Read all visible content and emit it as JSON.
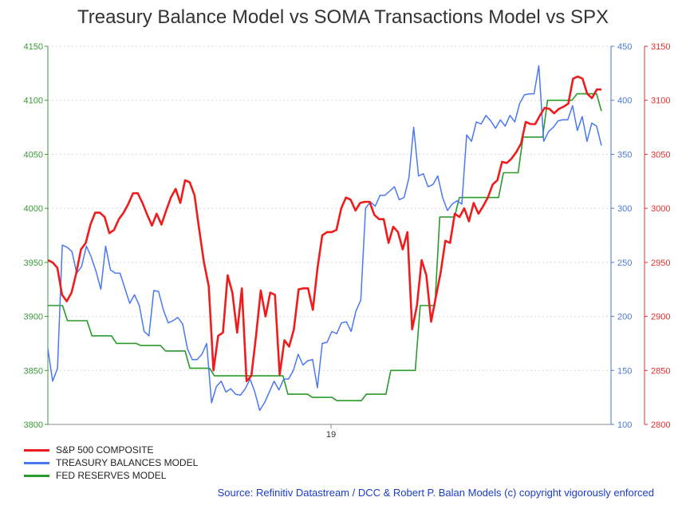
{
  "chart_data": {
    "type": "line",
    "title": "Treasury Balance Model vs SOMA Transactions Model vs SPX",
    "x_tick_label": "19",
    "axes": {
      "left": {
        "ylim": [
          3800,
          4150
        ],
        "ticks": [
          3800,
          3850,
          3900,
          3950,
          4000,
          4050,
          4100,
          4150
        ],
        "color": "#3a9a3a"
      },
      "right1": {
        "ylim": [
          100,
          450
        ],
        "ticks": [
          100,
          150,
          200,
          250,
          300,
          350,
          400,
          450
        ],
        "color": "#4a78d8"
      },
      "right2": {
        "ylim": [
          2800,
          3150
        ],
        "ticks": [
          2800,
          2850,
          2900,
          2950,
          3000,
          3050,
          3100,
          3150
        ],
        "color": "#e03030"
      }
    },
    "grid": true,
    "legend_position": "bottom-left",
    "series": [
      {
        "name": "S&P 500 COMPOSITE",
        "axis": "right2",
        "color": "#ee1c1c",
        "values": [
          2952,
          2950,
          2945,
          2920,
          2914,
          2922,
          2940,
          2962,
          2968,
          2985,
          2996,
          2996,
          2992,
          2977,
          2980,
          2990,
          2996,
          3004,
          3014,
          3014,
          3005,
          2994,
          2984,
          2995,
          2985,
          2998,
          3010,
          3018,
          3005,
          3026,
          3024,
          3012,
          2980,
          2950,
          2928,
          2850,
          2882,
          2885,
          2938,
          2922,
          2885,
          2926,
          2840,
          2845,
          2882,
          2924,
          2900,
          2922,
          2920,
          2846,
          2878,
          2872,
          2888,
          2925,
          2926,
          2926,
          2906,
          2945,
          2975,
          2978,
          2978,
          2980,
          3000,
          3010,
          3008,
          2998,
          3005,
          3006,
          3006,
          2994,
          2990,
          2990,
          2968,
          2983,
          2978,
          2962,
          2978,
          2888,
          2910,
          2952,
          2938,
          2895,
          2918,
          2940,
          2970,
          2968,
          2995,
          2992,
          3000,
          2988,
          3005,
          2995,
          3002,
          3010,
          3022,
          3026,
          3043,
          3042,
          3046,
          3052,
          3060,
          3080,
          3078,
          3078,
          3086,
          3093,
          3092,
          3088,
          3092,
          3094,
          3097,
          3120,
          3122,
          3120,
          3106,
          3102,
          3110,
          3110
        ]
      },
      {
        "name": "TREASURY BALANCES MODEL",
        "axis": "right1",
        "color": "#4a78f0",
        "values": [
          170,
          140,
          152,
          266,
          264,
          260,
          240,
          246,
          265,
          255,
          242,
          225,
          265,
          243,
          240,
          240,
          226,
          212,
          220,
          210,
          186,
          182,
          224,
          223,
          206,
          194,
          196,
          199,
          193,
          170,
          160,
          160,
          165,
          175,
          120,
          135,
          140,
          130,
          133,
          128,
          127,
          133,
          142,
          130,
          113,
          120,
          130,
          140,
          132,
          142,
          142,
          150,
          165,
          155,
          159,
          160,
          134,
          175,
          176,
          186,
          184,
          194,
          195,
          186,
          205,
          215,
          300,
          306,
          302,
          312,
          312,
          316,
          320,
          308,
          310,
          328,
          375,
          330,
          332,
          320,
          322,
          330,
          310,
          298,
          304,
          307,
          304,
          368,
          362,
          380,
          378,
          386,
          381,
          374,
          382,
          376,
          386,
          380,
          397,
          405,
          406,
          406,
          432,
          362,
          371,
          375,
          381,
          382,
          382,
          395,
          372,
          385,
          362,
          379,
          376,
          358
        ]
      },
      {
        "name": "FED RESERVES MODEL",
        "axis": "left",
        "color": "#2a9a2a",
        "values": [
          3910,
          3910,
          3910,
          3910,
          3896,
          3896,
          3896,
          3896,
          3896,
          3882,
          3882,
          3882,
          3882,
          3882,
          3875,
          3875,
          3875,
          3875,
          3875,
          3873,
          3873,
          3873,
          3873,
          3873,
          3868,
          3868,
          3868,
          3868,
          3868,
          3852,
          3852,
          3852,
          3852,
          3852,
          3845,
          3845,
          3845,
          3845,
          3845,
          3845,
          3845,
          3845,
          3845,
          3845,
          3845,
          3845,
          3845,
          3845,
          3845,
          3828,
          3828,
          3828,
          3828,
          3828,
          3825,
          3825,
          3825,
          3825,
          3825,
          3822,
          3822,
          3822,
          3822,
          3822,
          3822,
          3828,
          3828,
          3828,
          3828,
          3828,
          3850,
          3850,
          3850,
          3850,
          3850,
          3850,
          3910,
          3910,
          3910,
          3910,
          3992,
          3992,
          3992,
          3992,
          4010,
          4010,
          4010,
          4010,
          4010,
          4010,
          4010,
          4010,
          4010,
          4033,
          4033,
          4033,
          4033,
          4066,
          4066,
          4066,
          4066,
          4066,
          4100,
          4100,
          4100,
          4100,
          4100,
          4100,
          4106,
          4106,
          4106,
          4106,
          4106,
          4090
        ]
      }
    ]
  },
  "legend": [
    {
      "label": "S&P 500 COMPOSITE",
      "color": "#ee1c1c"
    },
    {
      "label": "TREASURY BALANCES MODEL",
      "color": "#4a78f0"
    },
    {
      "label": "FED RESERVES MODEL",
      "color": "#2a9a2a"
    }
  ],
  "source": "Source: Refinitiv Datastream / DCC & Robert P. Balan Models (c) copyright vigorously enforced"
}
